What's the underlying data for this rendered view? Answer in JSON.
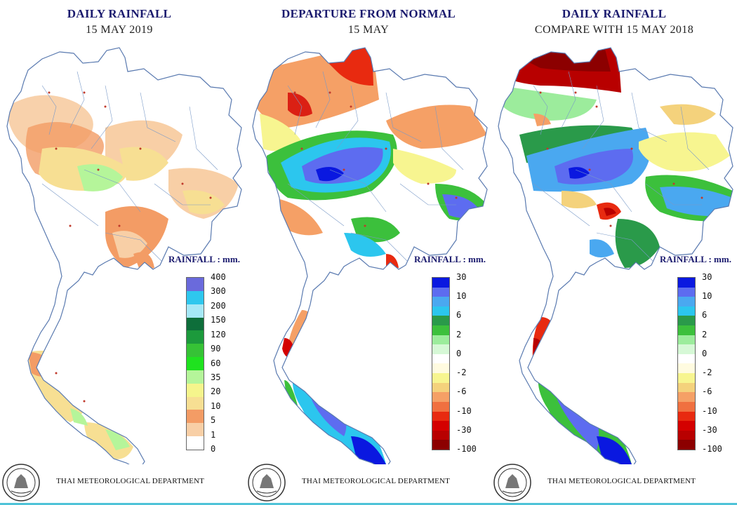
{
  "department": "THAI METEOROLOGICAL DEPARTMENT",
  "legend_title": "RAINFALL : mm.",
  "panels": [
    {
      "title": "DAILY RAINFALL",
      "subtitle": "15 MAY   2019",
      "legend_ticks": [
        "400",
        "300",
        "200",
        "150",
        "120",
        "90",
        "60",
        "35",
        "20",
        "10",
        "5",
        "1",
        "0"
      ],
      "legend_colors": [
        "#6a6adc",
        "#2ec7ee",
        "#a6e8f6",
        "#0e6e3a",
        "#1c9a3c",
        "#36c236",
        "#1fe21f",
        "#b5f59a",
        "#f5f58c",
        "#f7df93",
        "#f39c65",
        "#f8cfa6",
        "#ffffff"
      ]
    },
    {
      "title": "DEPARTURE FROM NORMAL",
      "subtitle": "15 MAY",
      "legend_ticks": [
        "30",
        "",
        "10",
        "",
        "6",
        "",
        "2",
        "",
        "0",
        "",
        "-2",
        "",
        "-6",
        "",
        "-10",
        "",
        "-30",
        "",
        "-100"
      ],
      "legend_colors": [
        "#0a18e0",
        "#5d6cf0",
        "#4aa8f0",
        "#2cc6ee",
        "#2a9a4a",
        "#3cc03c",
        "#9cec9c",
        "#d6f8d6",
        "#ffffff",
        "#fffbe0",
        "#f7f590",
        "#f4d27c",
        "#f5a066",
        "#f07040",
        "#e82a10",
        "#d40000",
        "#b80000",
        "#8c0000"
      ]
    },
    {
      "title": "DAILY RAINFALL",
      "subtitle": "COMPARE WITH  15  MAY  2018",
      "legend_ticks": [
        "30",
        "",
        "10",
        "",
        "6",
        "",
        "2",
        "",
        "0",
        "",
        "-2",
        "",
        "-6",
        "",
        "-10",
        "",
        "-30",
        "",
        "-100"
      ],
      "legend_colors": [
        "#0a18e0",
        "#5d6cf0",
        "#4aa8f0",
        "#2cc6ee",
        "#2a9a4a",
        "#3cc03c",
        "#9cec9c",
        "#d6f8d6",
        "#ffffff",
        "#fffbe0",
        "#f7f590",
        "#f4d27c",
        "#f5a066",
        "#f07040",
        "#e82a10",
        "#d40000",
        "#b80000",
        "#8c0000"
      ]
    }
  ]
}
